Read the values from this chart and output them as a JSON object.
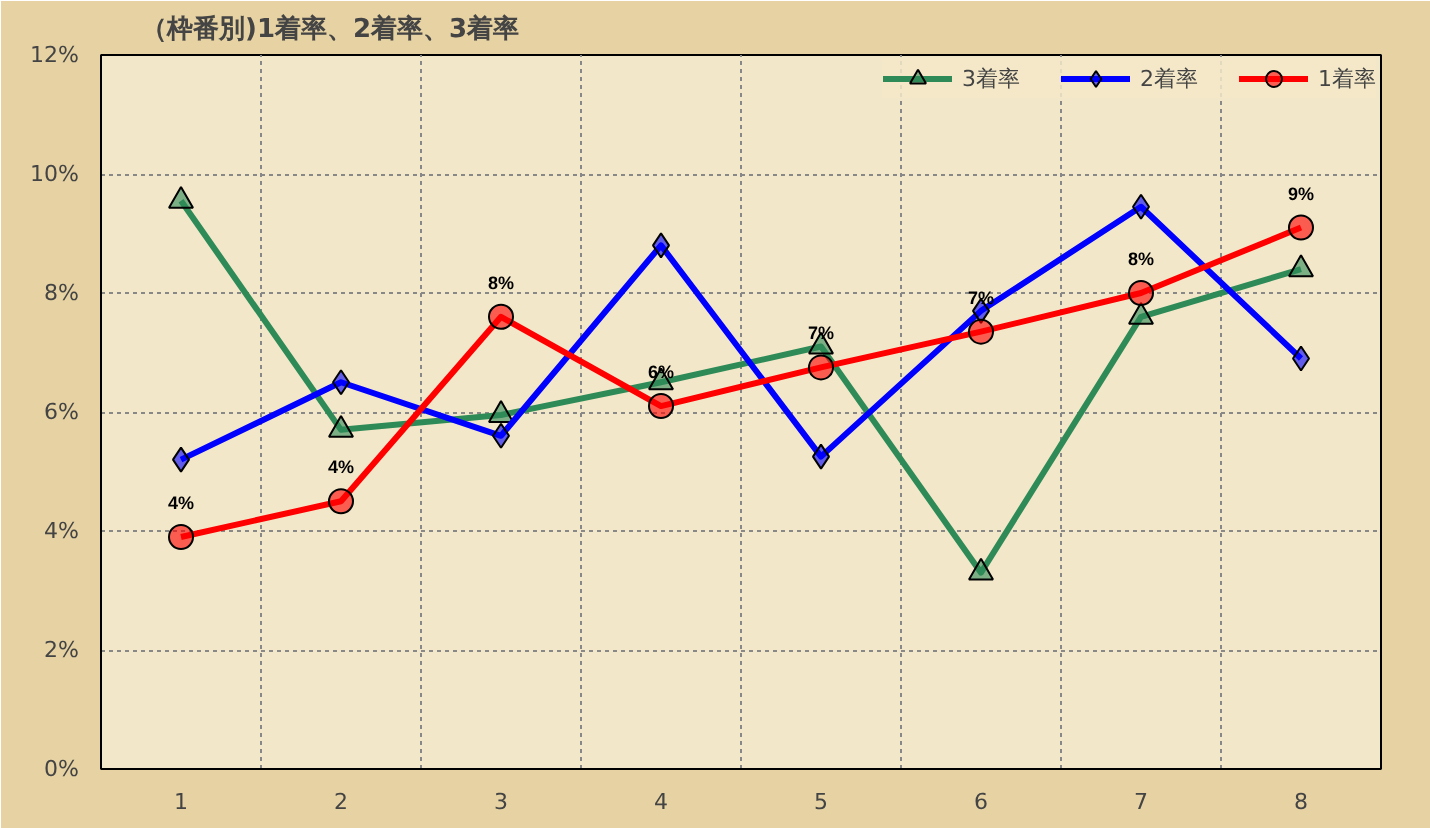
{
  "chart_data": {
    "type": "line",
    "title": "（枠番別)1着率、2着率、3着率",
    "categories": [
      "1",
      "2",
      "3",
      "4",
      "5",
      "6",
      "7",
      "8"
    ],
    "series": [
      {
        "name": "3着率",
        "color": "#2e8b57",
        "marker": "triangle",
        "values": [
          9.55,
          5.7,
          5.95,
          6.5,
          7.1,
          3.3,
          7.6,
          8.4
        ]
      },
      {
        "name": "2着率",
        "color": "#0000ff",
        "marker": "diamond",
        "values": [
          5.2,
          6.5,
          5.6,
          8.8,
          5.25,
          7.7,
          9.45,
          6.9
        ]
      },
      {
        "name": "1着率",
        "color": "#ff0000",
        "marker": "circle",
        "values": [
          3.9,
          4.5,
          7.6,
          6.1,
          6.75,
          7.35,
          8.0,
          9.1
        ],
        "value_labels": [
          "4%",
          "4%",
          "8%",
          "6%",
          "7%",
          "7%",
          "8%",
          "9%"
        ]
      }
    ],
    "ylim": [
      0,
      12
    ],
    "yticks": [
      {
        "value": 0,
        "label": "0%"
      },
      {
        "value": 2,
        "label": "2%"
      },
      {
        "value": 4,
        "label": "4%"
      },
      {
        "value": 6,
        "label": "6%"
      },
      {
        "value": 8,
        "label": "8%"
      },
      {
        "value": 10,
        "label": "10%"
      },
      {
        "value": 12,
        "label": "12%"
      }
    ],
    "grid": true,
    "legend": "top right",
    "line_style": "solid"
  }
}
